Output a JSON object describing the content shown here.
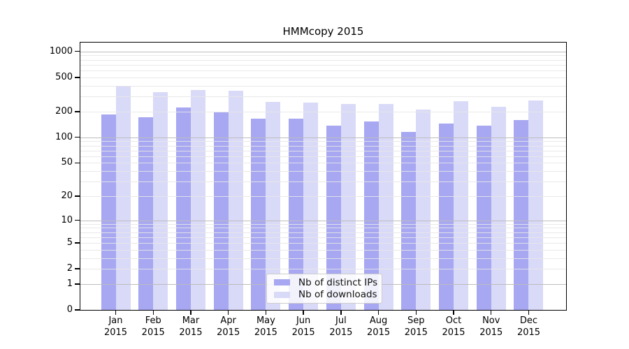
{
  "title": "HMMcopy 2015",
  "chart_data": {
    "type": "bar",
    "title": "HMMcopy 2015",
    "categories": [
      "Jan 2015",
      "Feb 2015",
      "Mar 2015",
      "Apr 2015",
      "May 2015",
      "Jun 2015",
      "Jul 2015",
      "Aug 2015",
      "Sep 2015",
      "Oct 2015",
      "Nov 2015",
      "Dec 2015"
    ],
    "x_tick_months": [
      "Jan",
      "Feb",
      "Mar",
      "Apr",
      "May",
      "Jun",
      "Jul",
      "Aug",
      "Sep",
      "Oct",
      "Nov",
      "Dec"
    ],
    "x_tick_year": "2015",
    "series": [
      {
        "name": "Nb of distinct IPs",
        "color": "#a7a7f2",
        "values": [
          184,
          170,
          225,
          195,
          166,
          165,
          138,
          154,
          116,
          145,
          136,
          159
        ]
      },
      {
        "name": "Nb of downloads",
        "color": "#d9d9f8",
        "values": [
          398,
          334,
          354,
          350,
          258,
          256,
          243,
          243,
          212,
          262,
          229,
          267
        ]
      }
    ],
    "xlabel": "",
    "ylabel": "",
    "y_scale": "log1p",
    "y_ticks": [
      0,
      1,
      2,
      5,
      10,
      20,
      50,
      100,
      200,
      500,
      1000
    ],
    "y_major_gridlines": [
      1,
      10,
      100,
      1000
    ],
    "y_minor_gridlines": [
      2,
      3,
      4,
      5,
      6,
      7,
      8,
      9,
      20,
      30,
      40,
      50,
      60,
      70,
      80,
      90,
      200,
      300,
      400,
      500,
      600,
      700,
      800,
      900
    ],
    "ylim": [
      0,
      1260
    ],
    "grid": true,
    "grid_above_bars": true,
    "legend_position": "lower center inside plot"
  },
  "legend": {
    "items": [
      {
        "label": "Nb of distinct IPs",
        "color": "#a7a7f2"
      },
      {
        "label": "Nb of downloads",
        "color": "#d9d9f8"
      }
    ]
  },
  "colors": {
    "background": "#ffffff",
    "bar_dark": "#a7a7f2",
    "bar_light": "#d9d9f8",
    "grid_major": "#bdbdbd",
    "grid_minor": "#e7e7e7",
    "frame": "#000000",
    "text": "#000000",
    "legend_border": "#cccccc"
  }
}
